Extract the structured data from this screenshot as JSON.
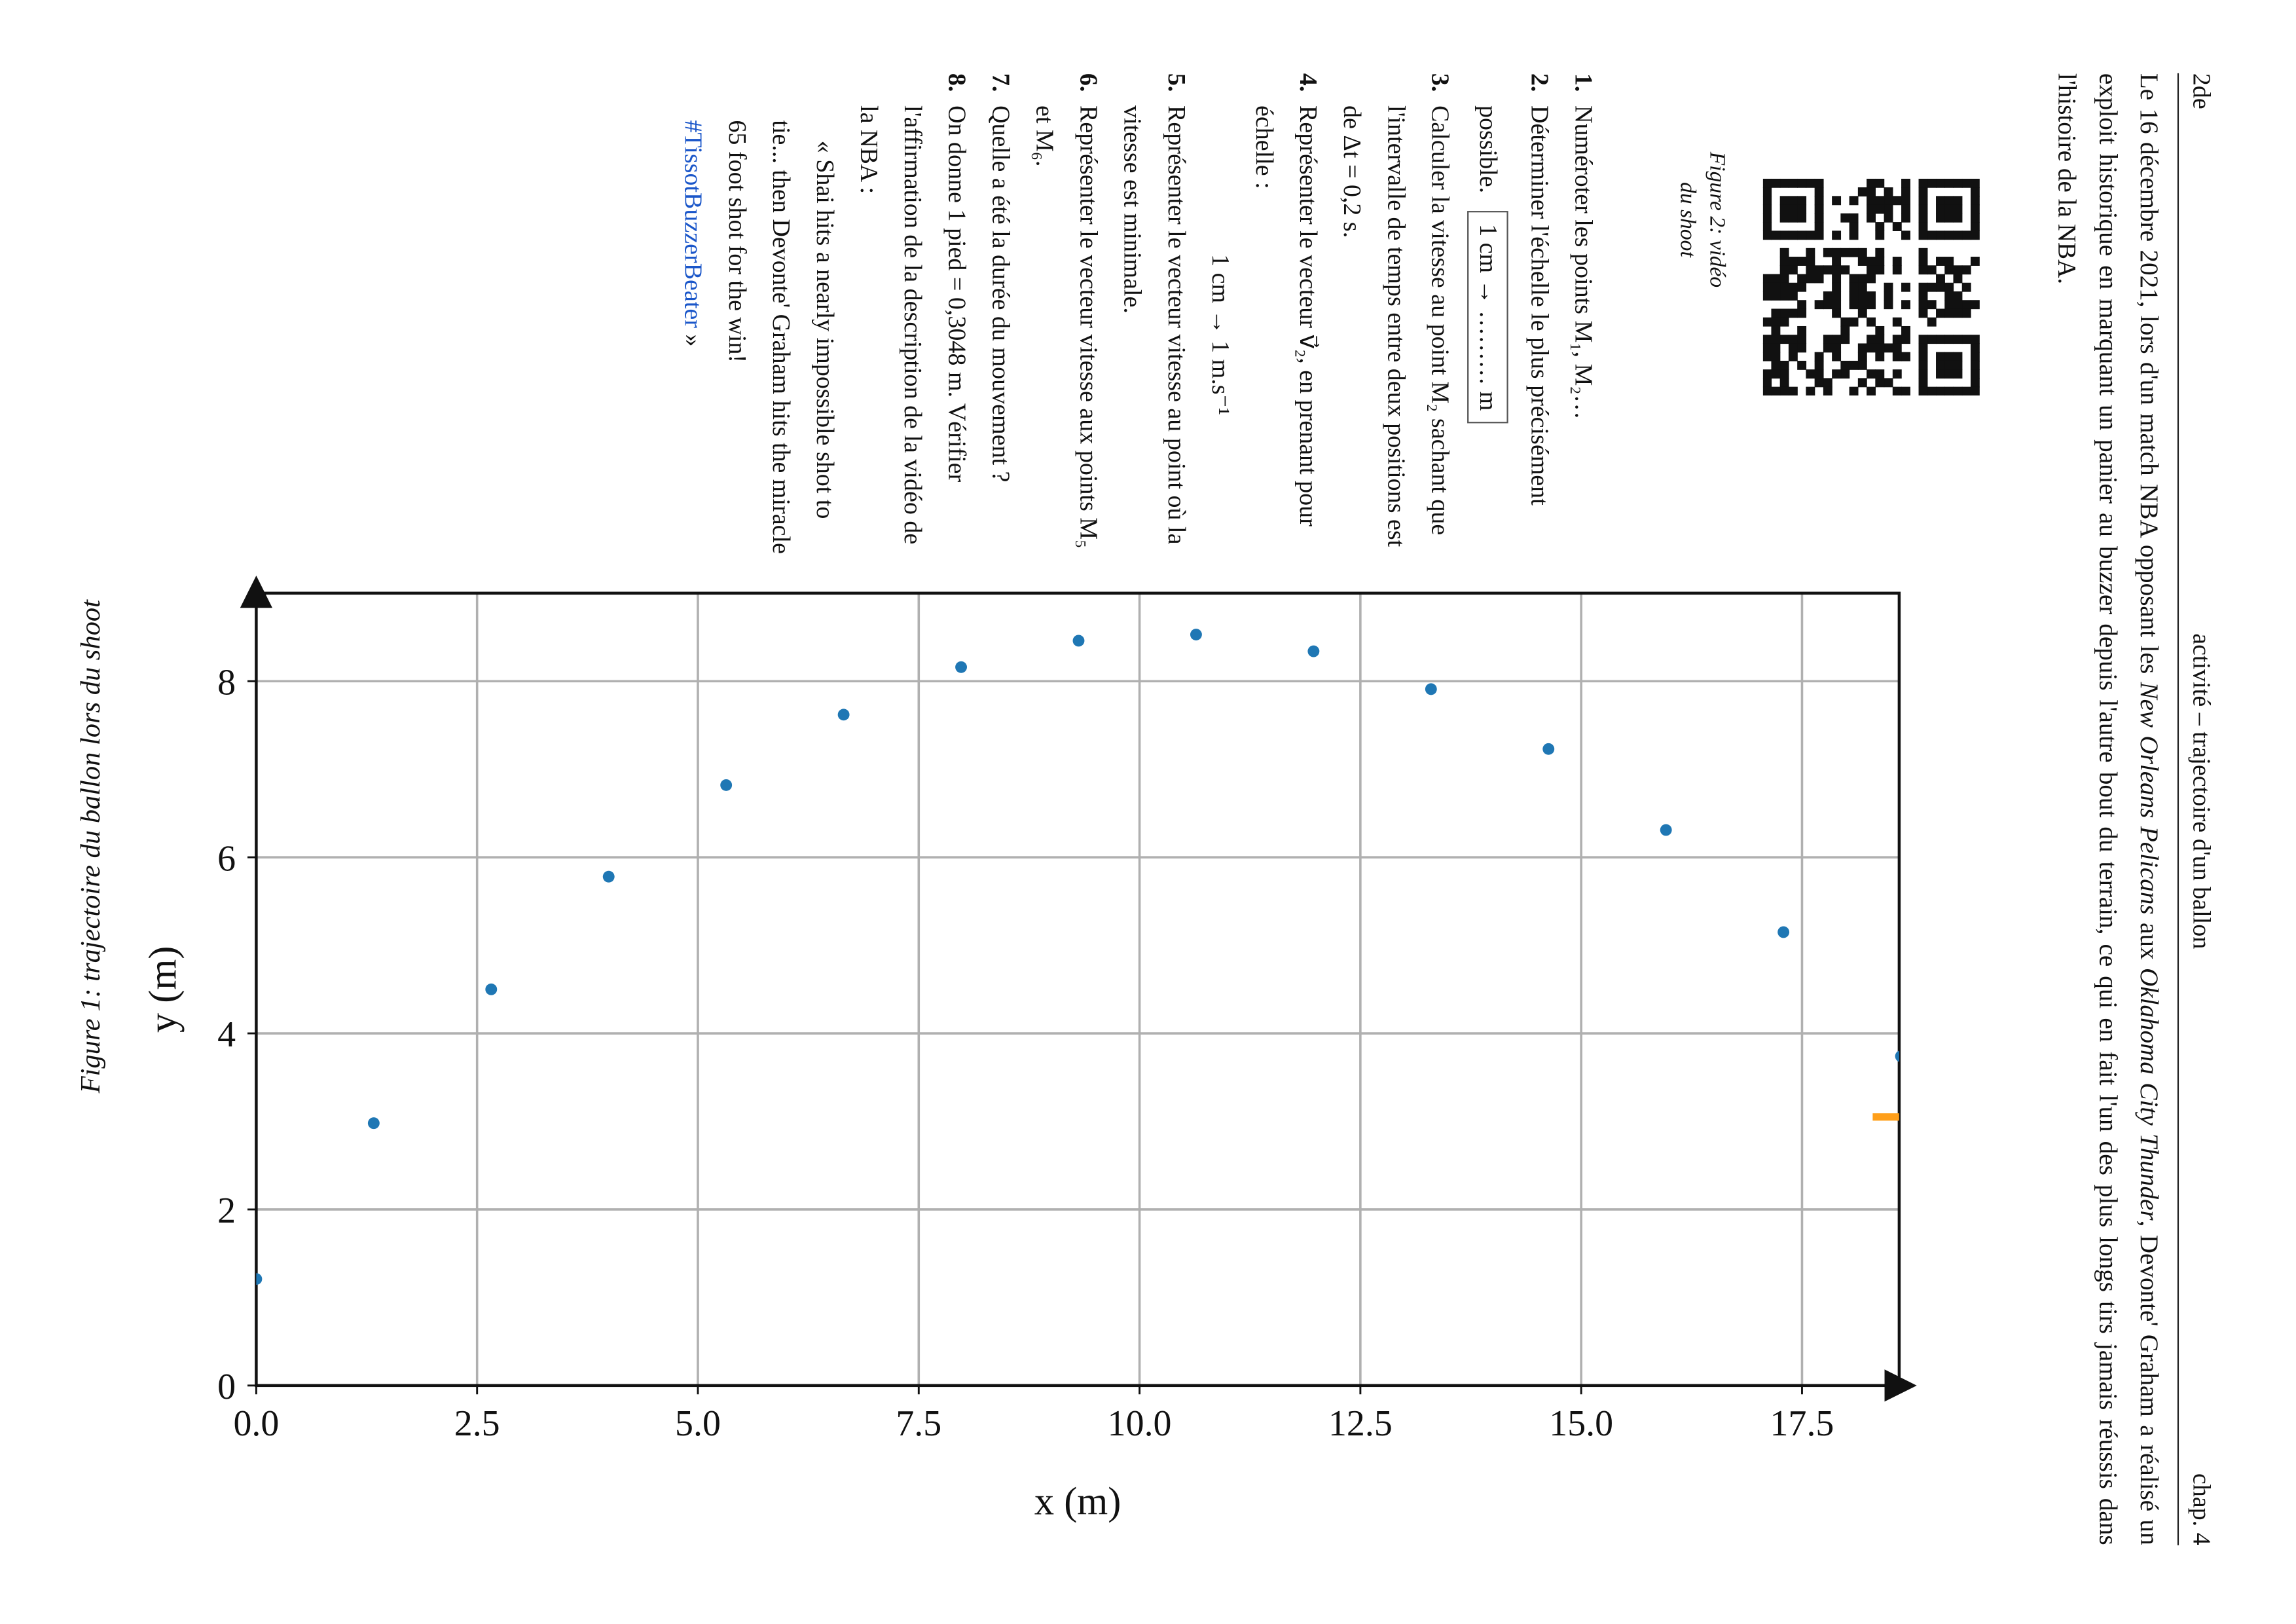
{
  "header": {
    "level": "2de",
    "title": "activité – trajectoire d'un ballon",
    "chapter": "chap. 4"
  },
  "intro": [
    "Le 16 décembre 2021, lors d'un match NBA opposant les ",
    "New Orleans Pelicans",
    " aux ",
    "Oklahoma City Thunder",
    ", Devonte' Graham a réalisé un exploit historique en marquant un panier au buzzer depuis l'autre bout du terrain, ce qui en fait l'un des plus longs tirs jamais réussis dans l'histoire de la NBA."
  ],
  "figure2": {
    "caption": "Figure 2: vidéo du shoot"
  },
  "questions": [
    {
      "number": "1.",
      "text": "Numéroter les points M₁, M₂…"
    },
    {
      "number": "2.",
      "text": "Déterminer l'échelle le plus précisément possible.",
      "box": "1 cm → ……… m"
    },
    {
      "number": "3.",
      "text": "Calculer la vitesse au point M₂ sachant que l'intervalle de temps entre deux positions est de Δt = 0,2 s."
    },
    {
      "number": "4.",
      "text": "Représenter le vecteur v⃗₂, en prenant pour échelle :",
      "scale": "1 cm → 1 m.s⁻¹"
    },
    {
      "number": "5.",
      "text": "Représenter le vecteur vitesse au point où la vitesse est minimale."
    },
    {
      "number": "6.",
      "text": "Représenter le vecteur vitesse aux points M₅ et M₆."
    },
    {
      "number": "7.",
      "text": "Quelle a été la durée du mouvement ?"
    },
    {
      "number": "8.",
      "text": "On donne 1 pied = 0,3048 m. Vérifier l'affirmation de la description de la vidéo de la NBA :",
      "quote": "« Shai hits a nearly impossible shot to tie... then Devonte' Graham hits the miracle 65 foot shot for the win! ",
      "hashtag": "#TissotBuzzerBeater",
      "quote_end": " »"
    }
  ],
  "chart_data": {
    "type": "scatter",
    "caption": "Figure 1: trajectoire du ballon lors du shoot",
    "xlabel": "x (m)",
    "ylabel": "y (m)",
    "grid": true,
    "xlim": [
      0,
      18.6
    ],
    "ylim": [
      0,
      9
    ],
    "xticks": [
      {
        "value": 0,
        "label": "0.0"
      },
      2.5,
      {
        "value": 5,
        "label": "5.0"
      },
      7.5,
      {
        "value": 10,
        "label": "10.0"
      },
      12.5,
      {
        "value": 15,
        "label": "15.0"
      },
      17.5
    ],
    "yticks": [
      0,
      2,
      4,
      6,
      8
    ],
    "series": [
      {
        "color": "#1f77b4",
        "mode": "points",
        "x": [
          0,
          1.33,
          2.66,
          3.99,
          5.32,
          6.65,
          7.98,
          9.31,
          10.64,
          11.97,
          13.3,
          14.63,
          15.96,
          17.29,
          18.62
        ],
        "values": [
          1.21,
          2.98,
          4.5,
          5.78,
          6.82,
          7.62,
          8.16,
          8.46,
          8.53,
          8.34,
          7.91,
          7.23,
          6.31,
          5.15,
          3.74
        ]
      },
      {
        "color": "#ff9f1a",
        "mode": "line",
        "x": [
          18.3,
          18.6
        ],
        "values": [
          3.05,
          3.05
        ]
      }
    ]
  }
}
